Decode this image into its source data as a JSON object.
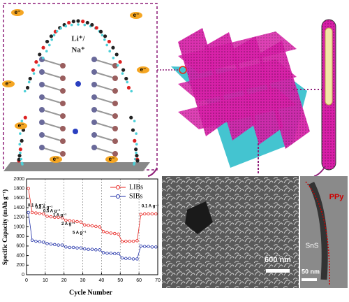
{
  "molecule": {
    "ion_labels": [
      "Li⁺/",
      "Na⁺"
    ],
    "electron_labels": [
      "e⁻",
      "e⁻",
      "e⁻",
      "e⁻",
      "e⁻",
      "e⁻",
      "e⁻"
    ]
  },
  "sem": {
    "scale_label": "600 nm"
  },
  "tem": {
    "scale_label": "50 nm",
    "core_label": "SnS",
    "shell_label": "PPy"
  },
  "chart_data": {
    "type": "line",
    "xlabel": "Cycle Number",
    "ylabel": "Specific Capacity (mAh g⁻¹)",
    "x": [
      1,
      3,
      5,
      7,
      9,
      11,
      13,
      15,
      17,
      19,
      21,
      23,
      25,
      27,
      29,
      31,
      33,
      35,
      37,
      39,
      41,
      43,
      45,
      47,
      49,
      51,
      53,
      55,
      57,
      59,
      61,
      63,
      65,
      67,
      69
    ],
    "series": [
      {
        "name": "LIBs",
        "color": "#e8231f",
        "values": [
          1800,
          1300,
          1290,
          1280,
          1270,
          1220,
          1210,
          1200,
          1200,
          1190,
          1140,
          1130,
          1120,
          1110,
          1100,
          1040,
          1030,
          1020,
          1010,
          1000,
          900,
          880,
          870,
          860,
          850,
          690,
          700,
          700,
          700,
          710,
          1260,
          1270,
          1270,
          1270,
          1270
        ]
      },
      {
        "name": "SIBs",
        "color": "#1f2fa8",
        "values": [
          1300,
          720,
          700,
          690,
          680,
          650,
          640,
          630,
          620,
          620,
          580,
          570,
          570,
          560,
          560,
          540,
          530,
          530,
          520,
          520,
          460,
          450,
          450,
          440,
          440,
          350,
          340,
          340,
          330,
          330,
          600,
          590,
          590,
          580,
          580
        ]
      }
    ],
    "annotations": [
      "0.1 A g⁻¹",
      "0.2 A g⁻¹",
      "0.5 A g⁻¹",
      "1 A g⁻¹",
      "2 A g⁻¹",
      "5 A g⁻¹",
      "0.1 A g⁻¹"
    ],
    "xlim": [
      0,
      70
    ],
    "xticks": [
      0,
      10,
      20,
      30,
      40,
      50,
      60,
      70
    ],
    "ylim": [
      0,
      2000
    ],
    "yticks": [
      0,
      200,
      400,
      600,
      800,
      1000,
      1200,
      1400,
      1600,
      1800,
      2000
    ],
    "grid": "x",
    "legend": "top-right"
  }
}
